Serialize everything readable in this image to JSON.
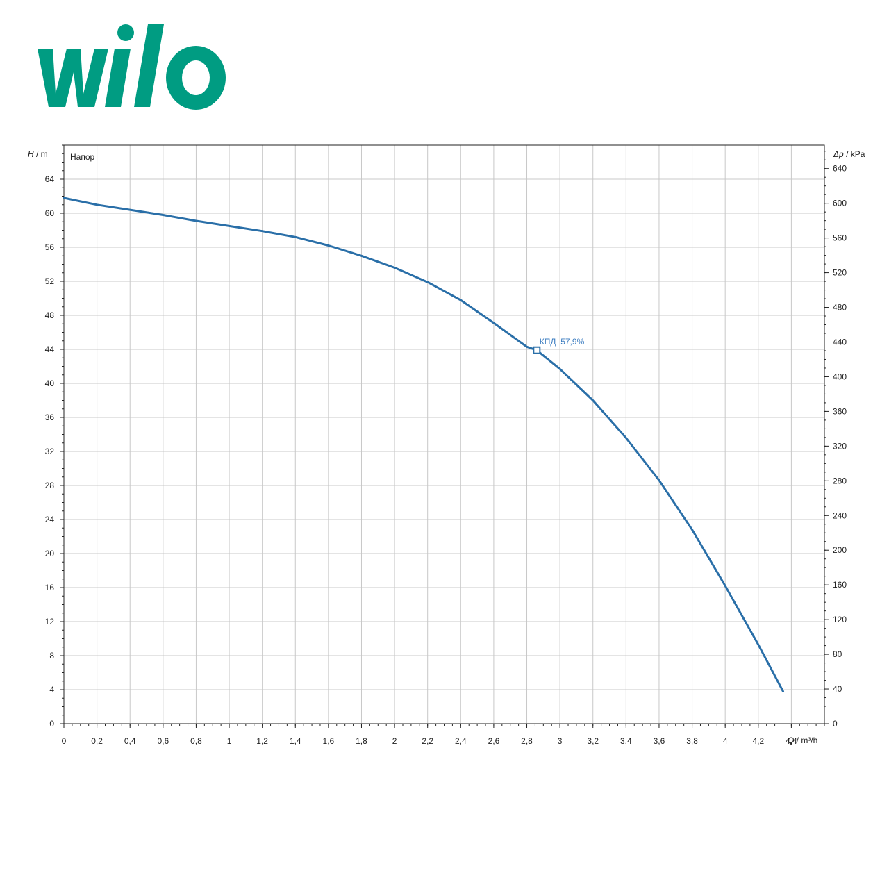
{
  "brand": {
    "name": "wilo",
    "color": "#009c82"
  },
  "chart_data": {
    "type": "line",
    "plot_label": "Напор",
    "y_axis_left": {
      "symbol": "H",
      "unit": " / m",
      "range": [
        0,
        68
      ],
      "major_step": 4,
      "tick_labels": [
        "0",
        "4",
        "8",
        "12",
        "16",
        "20",
        "24",
        "28",
        "32",
        "36",
        "40",
        "44",
        "48",
        "52",
        "56",
        "60",
        "64"
      ]
    },
    "y_axis_right": {
      "symbol": "Δp",
      "unit": " / kPa",
      "range": [
        0,
        667
      ],
      "tick_labels": [
        "0",
        "40",
        "80",
        "120",
        "160",
        "200",
        "240",
        "280",
        "320",
        "360",
        "400",
        "440",
        "480",
        "520",
        "560",
        "600",
        "640"
      ]
    },
    "x_axis": {
      "symbol": "Q",
      "unit": " / m³/h",
      "range": [
        0,
        4.6
      ],
      "tick_labels": [
        "0",
        "0,2",
        "0,4",
        "0,6",
        "0,8",
        "1",
        "1,2",
        "1,4",
        "1,6",
        "1,8",
        "2",
        "2,2",
        "2,4",
        "2,6",
        "2,8",
        "3",
        "3,2",
        "3,4",
        "3,6",
        "3,8",
        "4",
        "4,2",
        "4,4"
      ]
    },
    "grid": true,
    "series": [
      {
        "color": "#2a6fa8",
        "x": [
          0,
          0.2,
          0.4,
          0.6,
          0.8,
          1.0,
          1.2,
          1.4,
          1.6,
          1.8,
          2.0,
          2.2,
          2.4,
          2.6,
          2.8,
          2.86,
          3.0,
          3.2,
          3.4,
          3.6,
          3.8,
          4.0,
          4.2,
          4.35
        ],
        "y": [
          61.8,
          61.0,
          60.4,
          59.8,
          59.1,
          58.5,
          57.9,
          57.2,
          56.2,
          55.0,
          53.6,
          51.9,
          49.8,
          47.1,
          44.3,
          43.9,
          41.7,
          38.0,
          33.6,
          28.6,
          22.8,
          16.2,
          9.3,
          3.8
        ]
      }
    ],
    "annotation": {
      "label": "КПД  57,9%",
      "x": 2.86,
      "y": 43.9,
      "color": "#3b7cc0"
    }
  }
}
